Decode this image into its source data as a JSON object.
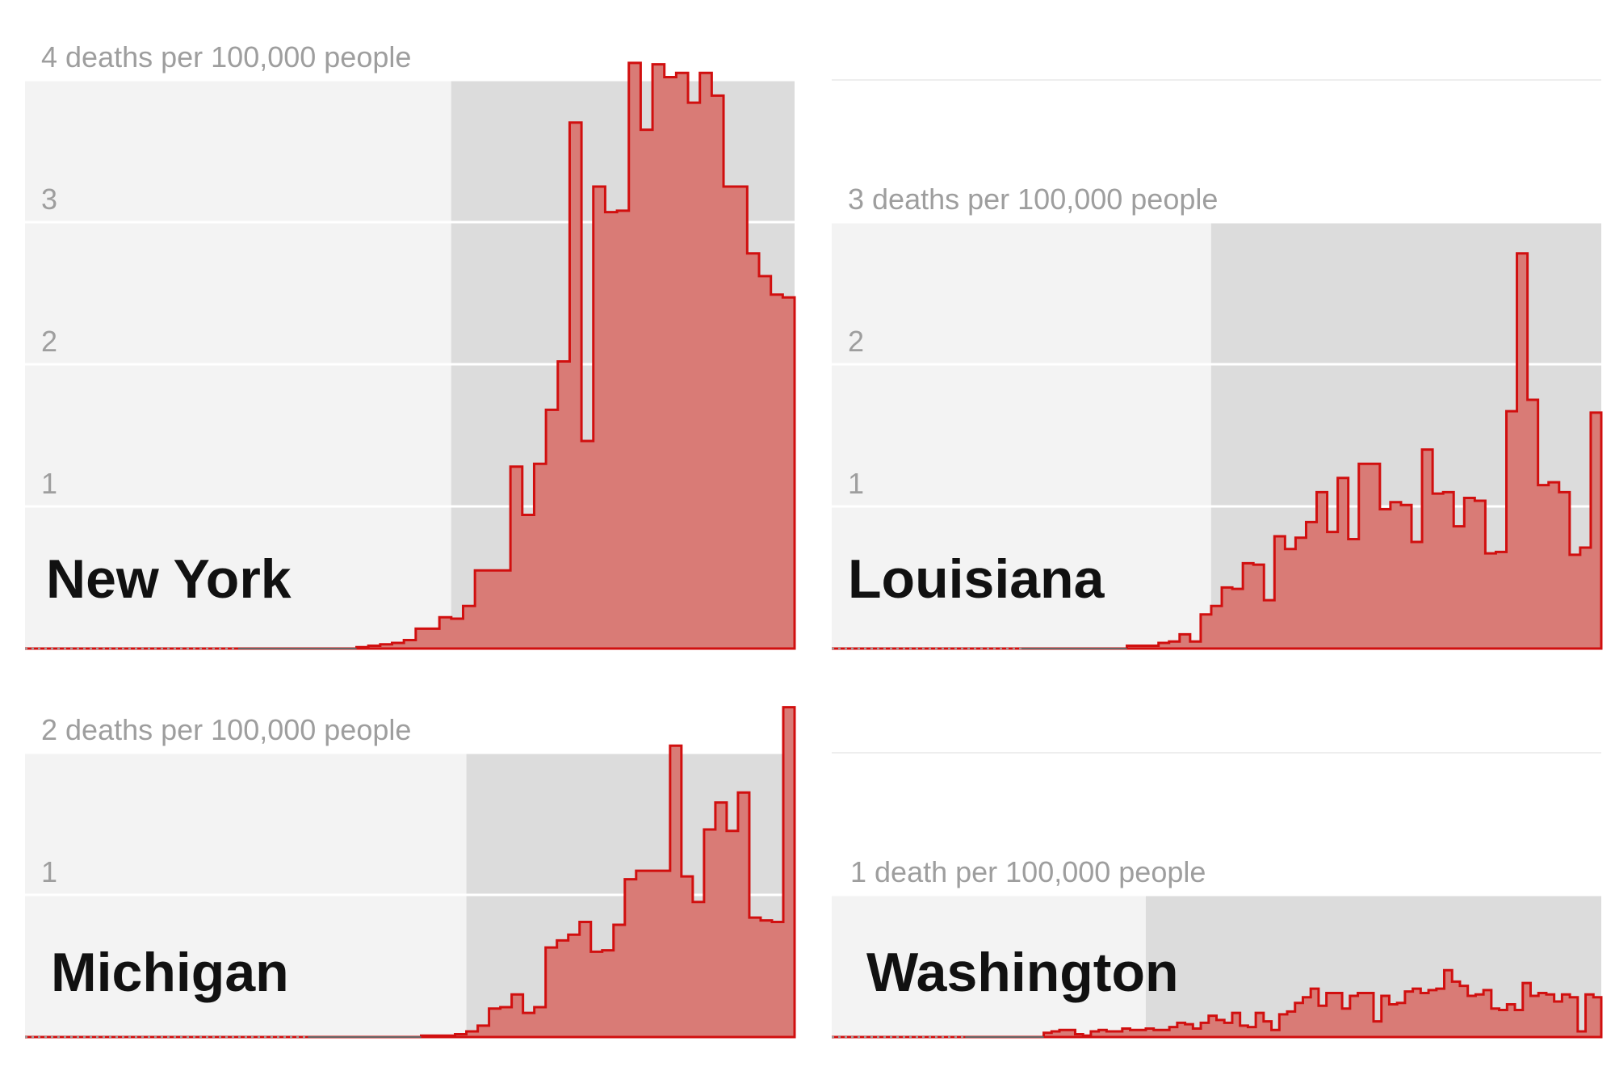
{
  "colors": {
    "bar_fill": "#d97b76",
    "bar_stroke": "#d10f0f",
    "bg_outside": "#f3f3f3",
    "bg_inside": "#dcdcdc",
    "grid": "#ffffff",
    "tick_text": "#9e9e9e",
    "label_text": "#111111"
  },
  "chart_data": [
    {
      "type": "area",
      "step": true,
      "title": "New York",
      "y_unit_label": "deaths per 100,000 people",
      "yticks": [
        "1",
        "2",
        "3",
        "4 deaths per 100,000 people"
      ],
      "ylim": [
        0,
        4
      ],
      "shaded_period_start_index": 36,
      "values": [
        0,
        0,
        0,
        0,
        0,
        0,
        0,
        0,
        0,
        0,
        0,
        0,
        0,
        0,
        0,
        0,
        0,
        0,
        0,
        0,
        0,
        0,
        0,
        0,
        0,
        0,
        0,
        0,
        0.01,
        0.02,
        0.03,
        0.04,
        0.06,
        0.14,
        0.14,
        0.22,
        0.21,
        0.3,
        0.55,
        0.55,
        0.55,
        1.28,
        0.94,
        1.3,
        1.68,
        2.02,
        3.7,
        1.46,
        3.25,
        3.07,
        3.08,
        4.12,
        3.65,
        4.11,
        4.02,
        4.05,
        3.84,
        4.05,
        3.89,
        3.25,
        3.25,
        2.78,
        2.62,
        2.49,
        2.47
      ]
    },
    {
      "type": "area",
      "step": true,
      "title": "Louisiana",
      "y_unit_label": "deaths per 100,000 people",
      "yticks": [
        "1",
        "2",
        "3 deaths per 100,000 people"
      ],
      "ylim": [
        0,
        3
      ],
      "shaded_period_start_index": 36,
      "values": [
        0,
        0,
        0,
        0,
        0,
        0,
        0,
        0,
        0,
        0,
        0,
        0,
        0,
        0,
        0,
        0,
        0,
        0,
        0,
        0,
        0,
        0,
        0,
        0,
        0,
        0,
        0,
        0,
        0.02,
        0.02,
        0.02,
        0.04,
        0.05,
        0.1,
        0.05,
        0.24,
        0.3,
        0.43,
        0.42,
        0.6,
        0.59,
        0.34,
        0.79,
        0.7,
        0.78,
        0.89,
        1.1,
        0.82,
        1.2,
        0.77,
        1.3,
        1.3,
        0.98,
        1.03,
        1.01,
        0.75,
        1.4,
        1.09,
        1.1,
        0.86,
        1.06,
        1.04,
        0.67,
        0.68,
        1.67,
        2.78,
        1.75,
        1.15,
        1.17,
        1.1,
        0.66,
        0.71,
        1.66
      ]
    },
    {
      "type": "area",
      "step": true,
      "title": "Michigan",
      "y_unit_label": "deaths per 100,000 people",
      "yticks": [
        "1",
        "2 deaths per 100,000 people"
      ],
      "ylim": [
        0,
        2
      ],
      "shaded_period_start_index": 39,
      "values": [
        0,
        0,
        0,
        0,
        0,
        0,
        0,
        0,
        0,
        0,
        0,
        0,
        0,
        0,
        0,
        0,
        0,
        0,
        0,
        0,
        0,
        0,
        0,
        0,
        0,
        0,
        0,
        0,
        0,
        0,
        0,
        0,
        0,
        0,
        0,
        0.01,
        0.01,
        0.01,
        0.02,
        0.04,
        0.08,
        0.2,
        0.21,
        0.3,
        0.17,
        0.21,
        0.63,
        0.68,
        0.72,
        0.81,
        0.6,
        0.61,
        0.79,
        1.11,
        1.17,
        1.17,
        1.17,
        2.05,
        1.13,
        0.95,
        1.46,
        1.65,
        1.45,
        1.72,
        0.84,
        0.82,
        0.81,
        2.32
      ]
    },
    {
      "type": "area",
      "step": true,
      "title": "Washington",
      "y_unit_label": "death per 100,000 people",
      "yticks": [
        "1 death per 100,000 people"
      ],
      "ylim": [
        0,
        1
      ],
      "shaded_period_start_index": 40,
      "values": [
        0,
        0,
        0,
        0,
        0,
        0,
        0,
        0,
        0,
        0,
        0,
        0,
        0,
        0,
        0,
        0,
        0,
        0,
        0,
        0,
        0,
        0,
        0,
        0,
        0,
        0,
        0,
        0.03,
        0.04,
        0.05,
        0.05,
        0.02,
        0.01,
        0.04,
        0.05,
        0.04,
        0.04,
        0.06,
        0.05,
        0.05,
        0.06,
        0.05,
        0.05,
        0.07,
        0.1,
        0.09,
        0.06,
        0.1,
        0.15,
        0.12,
        0.1,
        0.17,
        0.08,
        0.07,
        0.17,
        0.11,
        0.05,
        0.16,
        0.18,
        0.24,
        0.28,
        0.34,
        0.22,
        0.31,
        0.31,
        0.2,
        0.29,
        0.31,
        0.31,
        0.11,
        0.29,
        0.23,
        0.24,
        0.32,
        0.34,
        0.31,
        0.33,
        0.34,
        0.47,
        0.39,
        0.36,
        0.29,
        0.3,
        0.33,
        0.2,
        0.19,
        0.23,
        0.19,
        0.38,
        0.29,
        0.31,
        0.3,
        0.25,
        0.3,
        0.28,
        0.04,
        0.3,
        0.28
      ]
    }
  ]
}
